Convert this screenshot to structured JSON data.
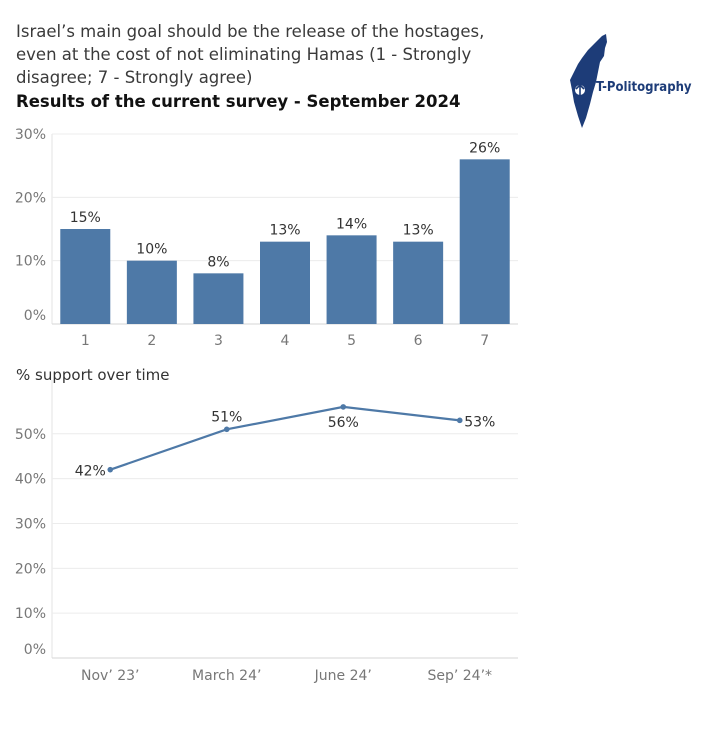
{
  "title": "Israel’s main goal should be the release of the hostages, even at the cost of not eliminating Hamas (1 - Strongly disagree; 7 - Strongly agree)",
  "subtitle": "Results of the current survey - September 2024",
  "logo": {
    "text": "T-Politography",
    "color": "#1d3c78"
  },
  "section_label": "% support over time",
  "colors": {
    "bar": "#4e79a7",
    "line": "#4e79a7",
    "grid": "#ececec",
    "axis_text": "#777777"
  },
  "chart_data": [
    {
      "type": "bar",
      "categories": [
        "1",
        "2",
        "3",
        "4",
        "5",
        "6",
        "7"
      ],
      "values": [
        15,
        10,
        8,
        13,
        14,
        13,
        26
      ],
      "value_labels": [
        "15%",
        "10%",
        "8%",
        "13%",
        "14%",
        "13%",
        "26%"
      ],
      "yticks": [
        "0%",
        "10%",
        "20%",
        "30%"
      ],
      "ytick_values": [
        0,
        10,
        20,
        30
      ],
      "ylim": [
        0,
        30
      ],
      "grid": true
    },
    {
      "type": "line",
      "title": "% support over time",
      "x": [
        "Nov’ 23’",
        "March 24’",
        "June 24’",
        "Sep’ 24’*"
      ],
      "values": [
        42,
        51,
        56,
        53
      ],
      "value_labels": [
        "42%",
        "51%",
        "56%",
        "53%"
      ],
      "yticks": [
        "0%",
        "10%",
        "20%",
        "30%",
        "40%",
        "50%"
      ],
      "ytick_values": [
        0,
        10,
        20,
        30,
        40,
        50
      ],
      "ylim": [
        0,
        62
      ],
      "grid": true
    }
  ]
}
